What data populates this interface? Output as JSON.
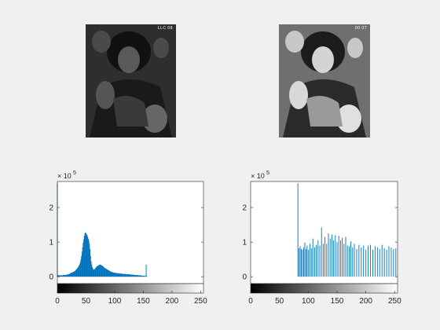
{
  "images": [
    {
      "name": "original-image",
      "tag": "LLC 08",
      "tone": "dark"
    },
    {
      "name": "equalized-image",
      "tag": "00 07",
      "tone": "light"
    }
  ],
  "chart_data": [
    {
      "type": "bar",
      "title": "",
      "xlabel": "",
      "ylabel": "",
      "exponent_label": "× 10",
      "exponent": "5",
      "xlim": [
        0,
        255
      ],
      "ylim": [
        -0.2,
        2.75
      ],
      "xticks": [
        "0",
        "50",
        "100",
        "150",
        "200",
        "250"
      ],
      "xtick_values": [
        0,
        50,
        100,
        150,
        200,
        250
      ],
      "yticks": [
        "0",
        "1",
        "2"
      ],
      "ytick_values": [
        0,
        1,
        2
      ],
      "colorbar": true,
      "bar_color": "#0072bd",
      "bins": [
        [
          0,
          2.7
        ],
        [
          1,
          0.05
        ],
        [
          2,
          0.04
        ],
        [
          3,
          0.04
        ],
        [
          4,
          0.04
        ],
        [
          5,
          0.04
        ],
        [
          6,
          0.04
        ],
        [
          7,
          0.04
        ],
        [
          8,
          0.04
        ],
        [
          9,
          0.04
        ],
        [
          10,
          0.05
        ],
        [
          11,
          0.05
        ],
        [
          12,
          0.05
        ],
        [
          13,
          0.05
        ],
        [
          14,
          0.05
        ],
        [
          15,
          0.05
        ],
        [
          16,
          0.06
        ],
        [
          17,
          0.06
        ],
        [
          18,
          0.06
        ],
        [
          19,
          0.07
        ],
        [
          20,
          0.07
        ],
        [
          21,
          0.08
        ],
        [
          22,
          0.09
        ],
        [
          23,
          0.1
        ],
        [
          24,
          0.11
        ],
        [
          25,
          0.12
        ],
        [
          26,
          0.12
        ],
        [
          27,
          0.13
        ],
        [
          28,
          0.14
        ],
        [
          29,
          0.15
        ],
        [
          30,
          0.16
        ],
        [
          31,
          0.17
        ],
        [
          32,
          0.19
        ],
        [
          33,
          0.21
        ],
        [
          34,
          0.23
        ],
        [
          35,
          0.25
        ],
        [
          36,
          0.27
        ],
        [
          37,
          0.3
        ],
        [
          38,
          0.33
        ],
        [
          39,
          0.36
        ],
        [
          40,
          0.42
        ],
        [
          41,
          0.5
        ],
        [
          42,
          0.6
        ],
        [
          43,
          0.72
        ],
        [
          44,
          0.85
        ],
        [
          45,
          0.98
        ],
        [
          46,
          1.08
        ],
        [
          47,
          1.18
        ],
        [
          48,
          1.25
        ],
        [
          49,
          1.28
        ],
        [
          50,
          1.26
        ],
        [
          51,
          1.22
        ],
        [
          52,
          1.2
        ],
        [
          53,
          1.15
        ],
        [
          54,
          1.1
        ],
        [
          55,
          1.05
        ],
        [
          56,
          0.95
        ],
        [
          57,
          0.8
        ],
        [
          58,
          0.6
        ],
        [
          59,
          0.45
        ],
        [
          60,
          0.35
        ],
        [
          61,
          0.28
        ],
        [
          62,
          0.24
        ],
        [
          63,
          0.22
        ],
        [
          64,
          0.2
        ],
        [
          65,
          0.22
        ],
        [
          66,
          0.24
        ],
        [
          67,
          0.26
        ],
        [
          68,
          0.28
        ],
        [
          69,
          0.3
        ],
        [
          70,
          0.31
        ],
        [
          71,
          0.32
        ],
        [
          72,
          0.33
        ],
        [
          73,
          0.34
        ],
        [
          74,
          0.35
        ],
        [
          75,
          0.35
        ],
        [
          76,
          0.34
        ],
        [
          77,
          0.33
        ],
        [
          78,
          0.32
        ],
        [
          79,
          0.31
        ],
        [
          80,
          0.3
        ],
        [
          81,
          0.28
        ],
        [
          82,
          0.26
        ],
        [
          83,
          0.25
        ],
        [
          84,
          0.24
        ],
        [
          85,
          0.23
        ],
        [
          86,
          0.22
        ],
        [
          87,
          0.21
        ],
        [
          88,
          0.2
        ],
        [
          89,
          0.19
        ],
        [
          90,
          0.18
        ],
        [
          91,
          0.17
        ],
        [
          92,
          0.16
        ],
        [
          93,
          0.15
        ],
        [
          94,
          0.14
        ],
        [
          95,
          0.14
        ],
        [
          96,
          0.13
        ],
        [
          97,
          0.13
        ],
        [
          98,
          0.12
        ],
        [
          99,
          0.12
        ],
        [
          100,
          0.12
        ],
        [
          101,
          0.11
        ],
        [
          102,
          0.11
        ],
        [
          103,
          0.11
        ],
        [
          104,
          0.1
        ],
        [
          105,
          0.1
        ],
        [
          106,
          0.1
        ],
        [
          107,
          0.1
        ],
        [
          108,
          0.1
        ],
        [
          109,
          0.09
        ],
        [
          110,
          0.09
        ],
        [
          111,
          0.09
        ],
        [
          112,
          0.09
        ],
        [
          113,
          0.09
        ],
        [
          114,
          0.08
        ],
        [
          115,
          0.08
        ],
        [
          116,
          0.08
        ],
        [
          117,
          0.08
        ],
        [
          118,
          0.08
        ],
        [
          119,
          0.08
        ],
        [
          120,
          0.07
        ],
        [
          121,
          0.07
        ],
        [
          122,
          0.07
        ],
        [
          123,
          0.07
        ],
        [
          124,
          0.07
        ],
        [
          125,
          0.07
        ],
        [
          126,
          0.07
        ],
        [
          127,
          0.06
        ],
        [
          128,
          0.06
        ],
        [
          129,
          0.06
        ],
        [
          130,
          0.06
        ],
        [
          131,
          0.06
        ],
        [
          132,
          0.06
        ],
        [
          133,
          0.06
        ],
        [
          134,
          0.05
        ],
        [
          135,
          0.05
        ],
        [
          136,
          0.05
        ],
        [
          137,
          0.05
        ],
        [
          138,
          0.05
        ],
        [
          139,
          0.05
        ],
        [
          140,
          0.05
        ],
        [
          141,
          0.04
        ],
        [
          142,
          0.04
        ],
        [
          143,
          0.04
        ],
        [
          144,
          0.04
        ],
        [
          145,
          0.04
        ],
        [
          146,
          0.04
        ],
        [
          147,
          0.03
        ],
        [
          148,
          0.03
        ],
        [
          149,
          0.03
        ],
        [
          150,
          0.03
        ],
        [
          151,
          0.03
        ],
        [
          152,
          0.03
        ],
        [
          153,
          0.02
        ],
        [
          154,
          0.02
        ],
        [
          155,
          0.35
        ],
        [
          156,
          0.02
        ]
      ]
    },
    {
      "type": "bar",
      "title": "",
      "xlabel": "",
      "ylabel": "",
      "exponent_label": "× 10",
      "exponent": "5",
      "xlim": [
        0,
        255
      ],
      "ylim": [
        -0.2,
        2.75
      ],
      "xticks": [
        "0",
        "50",
        "100",
        "150",
        "200",
        "250"
      ],
      "xtick_values": [
        0,
        50,
        100,
        150,
        200,
        250
      ],
      "yticks": [
        "0",
        "1",
        "2"
      ],
      "ytick_values": [
        0,
        1,
        2
      ],
      "colorbar": true,
      "bar_color": "#0072bd",
      "bins": [
        [
          82,
          2.7
        ],
        [
          84,
          0.82
        ],
        [
          86,
          0.88
        ],
        [
          88,
          0.8
        ],
        [
          90,
          0.78
        ],
        [
          92,
          0.85
        ],
        [
          94,
          0.98
        ],
        [
          96,
          0.8
        ],
        [
          98,
          0.9
        ],
        [
          100,
          0.78
        ],
        [
          103,
          0.95
        ],
        [
          106,
          0.82
        ],
        [
          108,
          1.1
        ],
        [
          111,
          0.85
        ],
        [
          114,
          0.92
        ],
        [
          117,
          1.05
        ],
        [
          120,
          0.9
        ],
        [
          123,
          1.42
        ],
        [
          126,
          0.95
        ],
        [
          129,
          1.15
        ],
        [
          132,
          0.95
        ],
        [
          135,
          1.25
        ],
        [
          138,
          1.1
        ],
        [
          141,
          1.22
        ],
        [
          144,
          1.05
        ],
        [
          147,
          1.2
        ],
        [
          150,
          1.0
        ],
        [
          153,
          1.18
        ],
        [
          156,
          1.05
        ],
        [
          159,
          1.12
        ],
        [
          162,
          0.95
        ],
        [
          165,
          1.15
        ],
        [
          168,
          0.9
        ],
        [
          171,
          0.88
        ],
        [
          174,
          1.02
        ],
        [
          177,
          0.85
        ],
        [
          180,
          0.95
        ],
        [
          184,
          0.8
        ],
        [
          188,
          0.92
        ],
        [
          192,
          0.85
        ],
        [
          196,
          0.9
        ],
        [
          200,
          0.78
        ],
        [
          204,
          0.9
        ],
        [
          208,
          0.92
        ],
        [
          212,
          0.78
        ],
        [
          216,
          0.88
        ],
        [
          220,
          0.85
        ],
        [
          224,
          0.8
        ],
        [
          228,
          0.92
        ],
        [
          232,
          0.82
        ],
        [
          236,
          0.78
        ],
        [
          240,
          0.88
        ],
        [
          244,
          0.84
        ],
        [
          248,
          0.8
        ],
        [
          252,
          0.82
        ]
      ]
    }
  ]
}
